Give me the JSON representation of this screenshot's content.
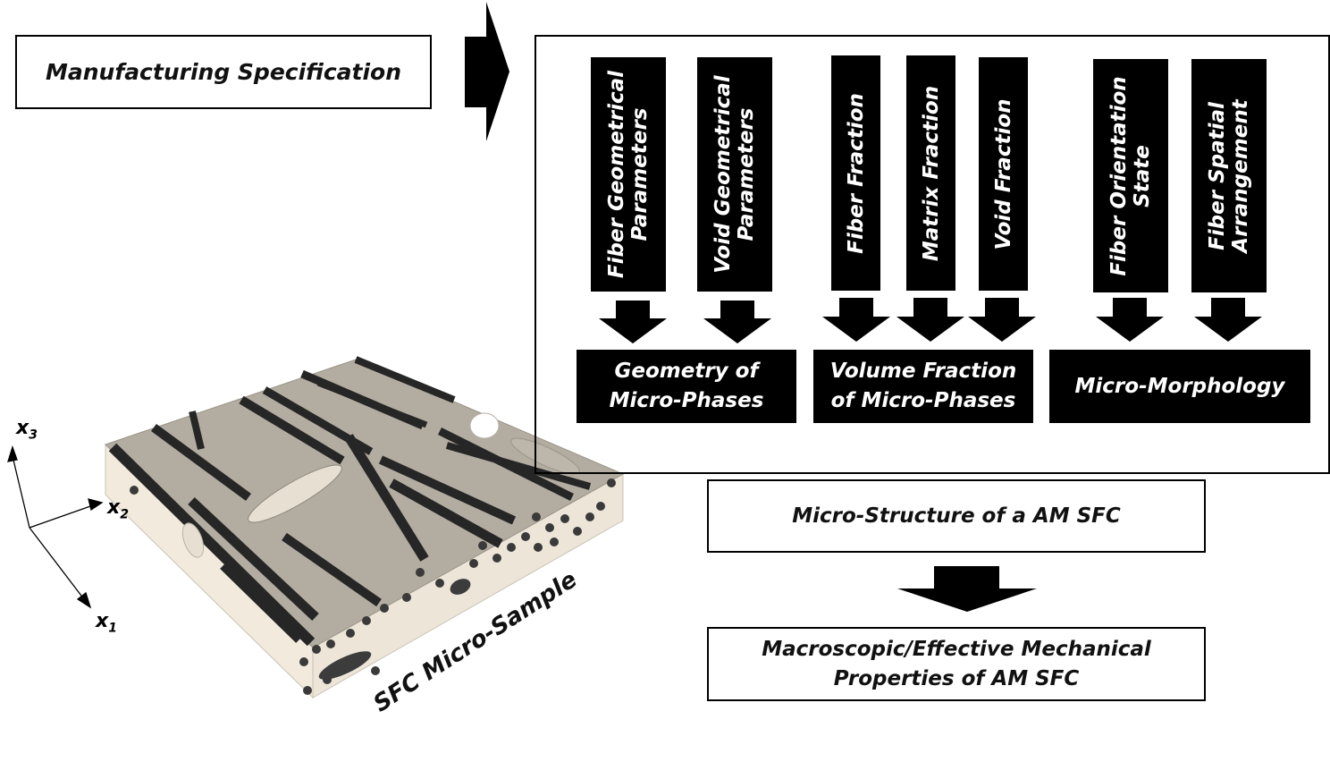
{
  "flow": {
    "manufacturing_spec": "Manufacturing Specification",
    "micro_structure": "Micro-Structure of a AM SFC",
    "macroscopic_line1": "Macroscopic/Effective Mechanical",
    "macroscopic_line2": "Properties of AM SFC"
  },
  "parameters": {
    "fiber_geometrical_line1": "Fiber Geometrical",
    "fiber_geometrical_line2": "Parameters",
    "void_geometrical_line1": "Void Geometrical",
    "void_geometrical_line2": "Parameters",
    "fiber_fraction": "Fiber Fraction",
    "matrix_fraction": "Matrix Fraction",
    "void_fraction": "Void Fraction",
    "fiber_orientation_line1": "Fiber Orientation",
    "fiber_orientation_line2": "State",
    "fiber_spatial_line1": "Fiber Spatial",
    "fiber_spatial_line2": "Arrangement"
  },
  "groups": {
    "geometry_line1": "Geometry of",
    "geometry_line2": "Micro-Phases",
    "volume_line1": "Volume Fraction",
    "volume_line2": "of Micro-Phases",
    "morphology": "Micro-Morphology"
  },
  "sample": {
    "label": "SFC Micro-Sample",
    "axis_x1": "x",
    "axis_x1_sub": "1",
    "axis_x2": "x",
    "axis_x2_sub": "2",
    "axis_x3": "x",
    "axis_x3_sub": "3"
  },
  "colors": {
    "top_face": "#b3aca0",
    "side_face": "#f2ebdd",
    "fiber": "#262626"
  }
}
